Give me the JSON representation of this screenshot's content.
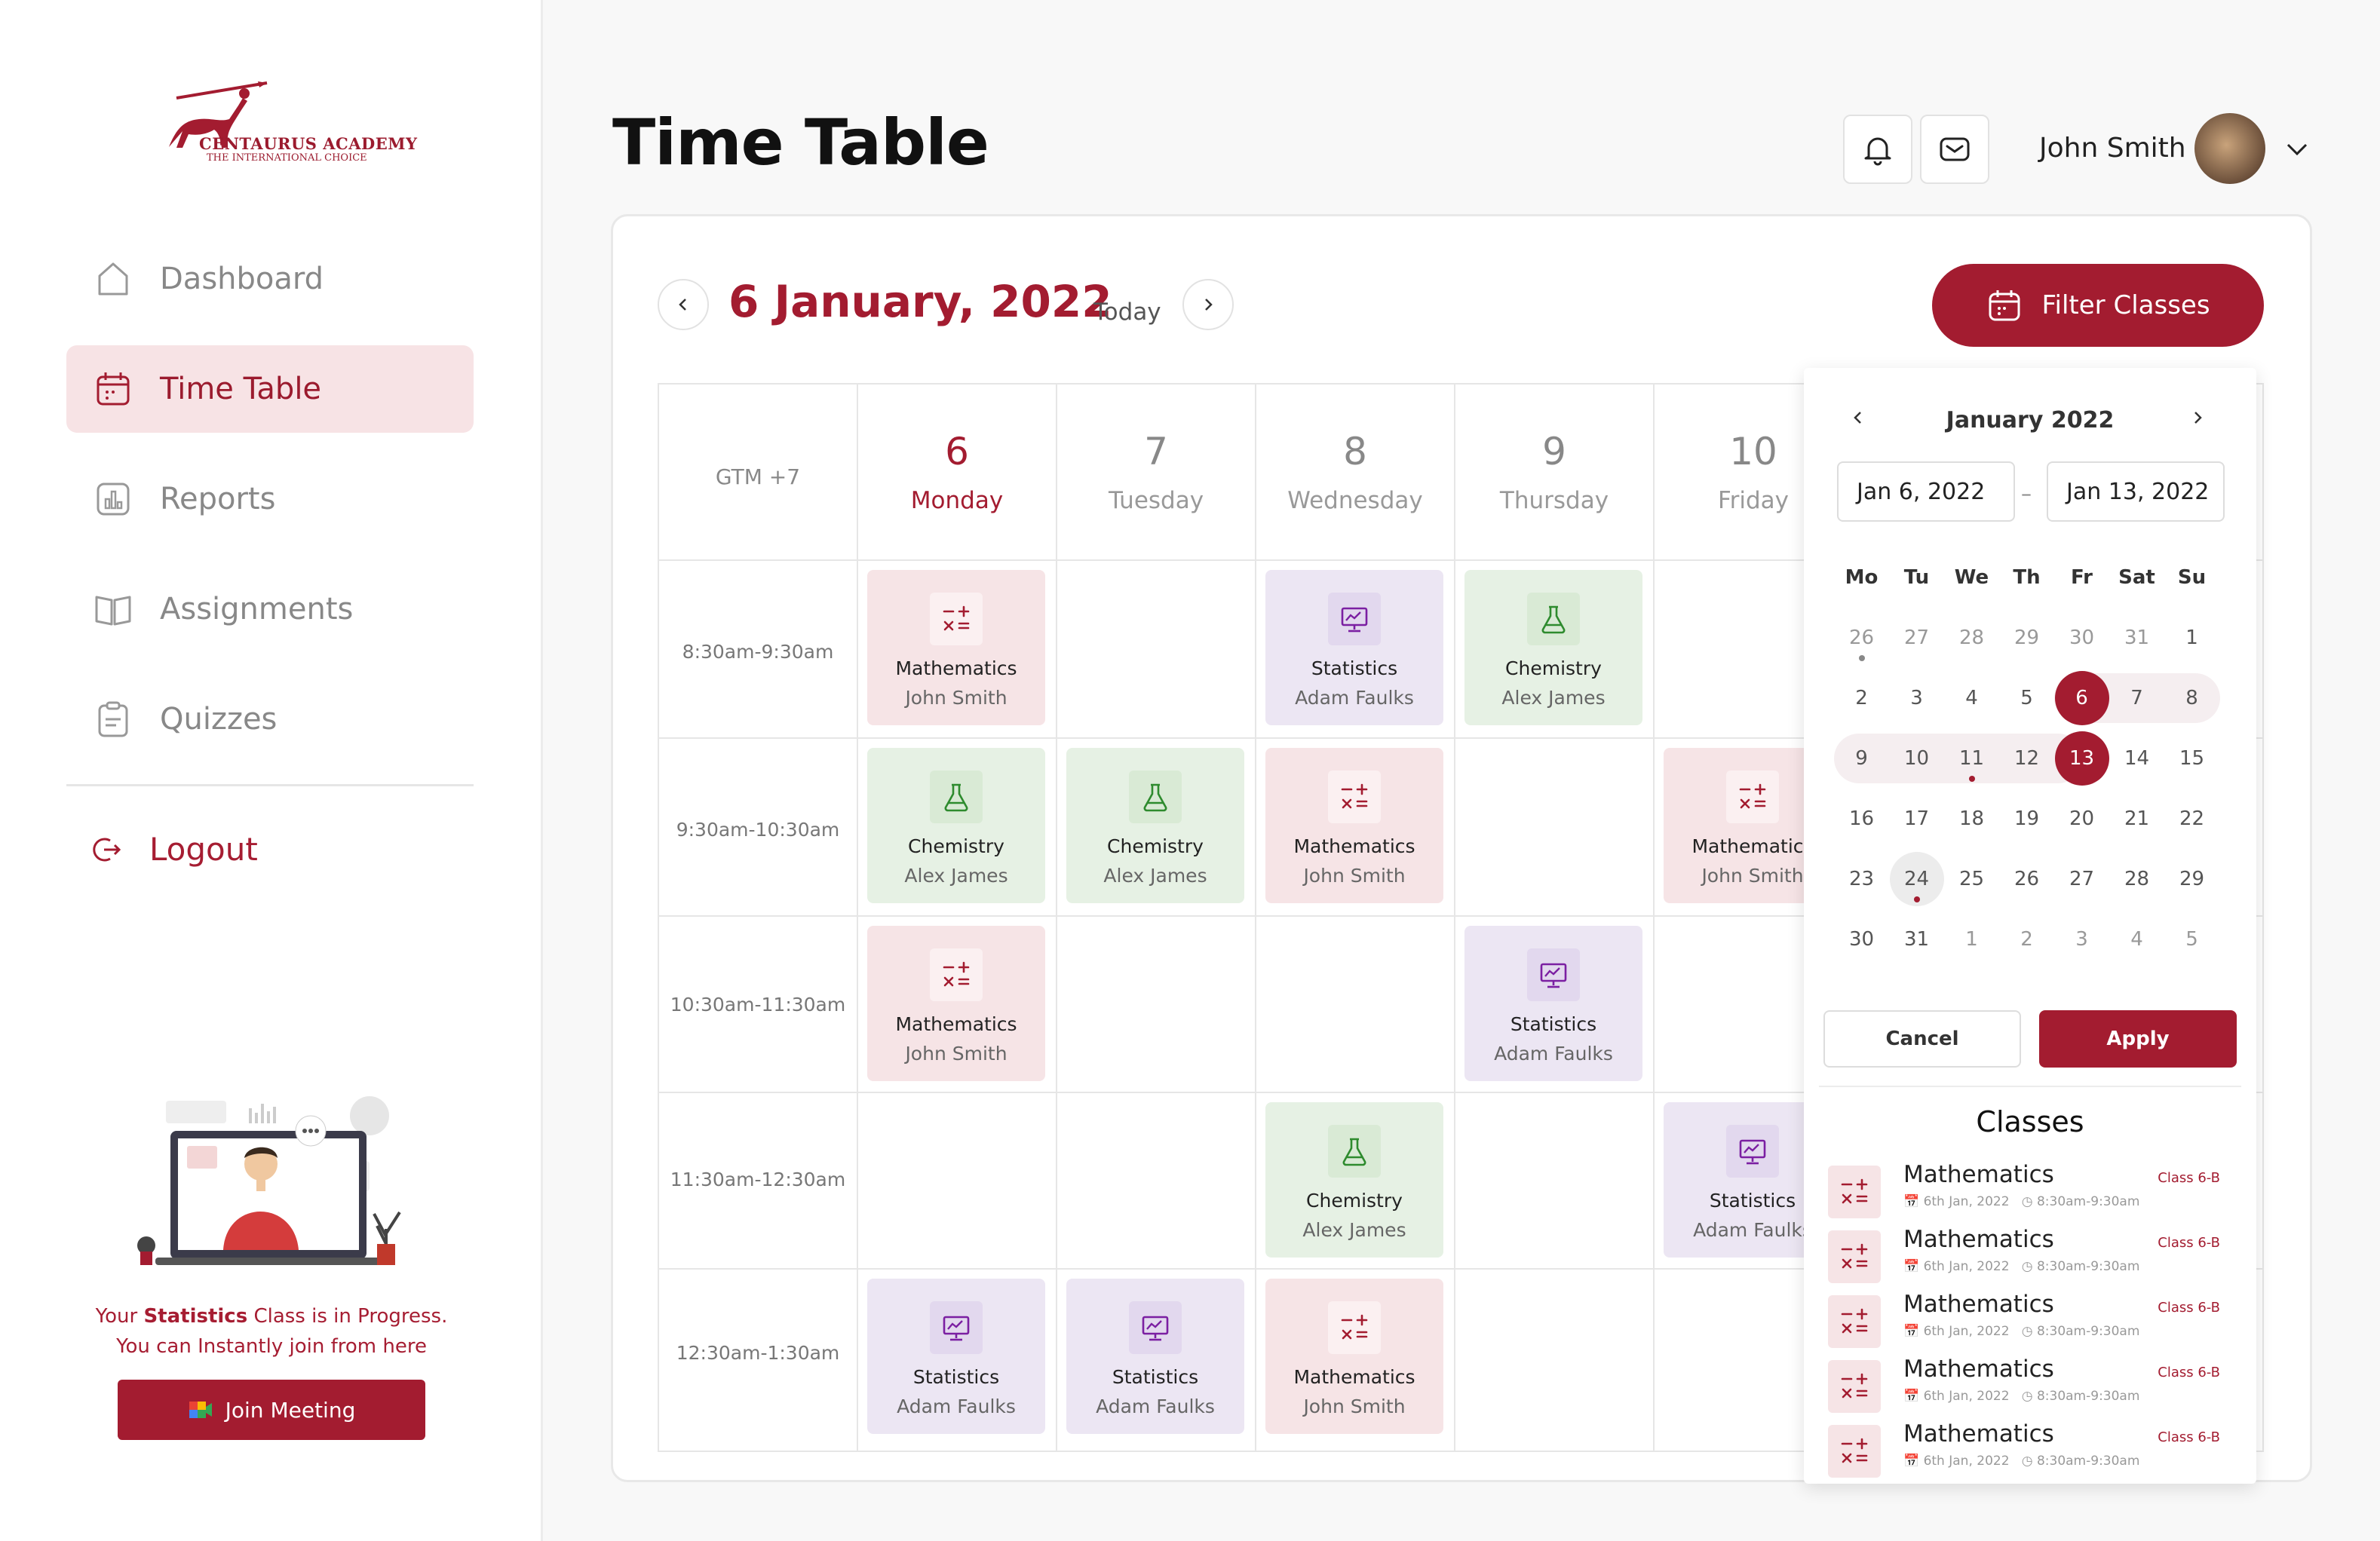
{
  "brand": {
    "name": "CENTAURUS ACADEMY",
    "tagline": "THE INTERNATIONAL CHOICE",
    "accent": "#a31c30"
  },
  "sidebar": {
    "items": [
      {
        "label": "Dashboard",
        "icon": "home-icon"
      },
      {
        "label": "Time Table",
        "icon": "calendar-icon",
        "active": true
      },
      {
        "label": "Reports",
        "icon": "chart-icon"
      },
      {
        "label": "Assignments",
        "icon": "book-icon"
      },
      {
        "label": "Quizzes",
        "icon": "clipboard-icon"
      }
    ],
    "logout": "Logout",
    "promo": {
      "prefix": "Your",
      "subject": "Statistics",
      "suffix": "Class is in Progress.",
      "line2": "You can Instantly join from here"
    },
    "join_button": "Join Meeting"
  },
  "header": {
    "title": "Time Table",
    "user_name": "John Smith"
  },
  "toolbar": {
    "current_date": "6 January, 2022",
    "today_label": "Today",
    "filter_button": "Filter Classes"
  },
  "timetable": {
    "timezone": "GTM +7",
    "days": [
      {
        "num": "6",
        "name": "Monday",
        "active": true
      },
      {
        "num": "7",
        "name": "Tuesday"
      },
      {
        "num": "8",
        "name": "Wednesday"
      },
      {
        "num": "9",
        "name": "Thursday"
      },
      {
        "num": "10",
        "name": "Friday"
      }
    ],
    "slots": [
      "8:30am-9:30am",
      "9:30am-10:30am",
      "10:30am-11:30am",
      "11:30am-12:30am",
      "12:30am-1:30am"
    ],
    "classes": [
      {
        "subject": "Mathematics",
        "teacher": "John Smith",
        "type": "math",
        "day": 0,
        "slot": 0
      },
      {
        "subject": "Statistics",
        "teacher": "Adam Faulks",
        "type": "stat",
        "day": 2,
        "slot": 0
      },
      {
        "subject": "Chemistry",
        "teacher": "Alex James",
        "type": "chem",
        "day": 3,
        "slot": 0
      },
      {
        "subject": "Chemistry",
        "teacher": "Alex James",
        "type": "chem",
        "day": 0,
        "slot": 1
      },
      {
        "subject": "Chemistry",
        "teacher": "Alex James",
        "type": "chem",
        "day": 1,
        "slot": 1
      },
      {
        "subject": "Mathematics",
        "teacher": "John Smith",
        "type": "math",
        "day": 2,
        "slot": 1
      },
      {
        "subject": "Mathematics",
        "teacher": "John Smith",
        "type": "math",
        "day": 4,
        "slot": 1
      },
      {
        "subject": "Mathematics",
        "teacher": "John Smith",
        "type": "math",
        "day": 0,
        "slot": 2
      },
      {
        "subject": "Statistics",
        "teacher": "Adam Faulks",
        "type": "stat",
        "day": 3,
        "slot": 2
      },
      {
        "subject": "Chemistry",
        "teacher": "Alex James",
        "type": "chem",
        "day": 2,
        "slot": 3
      },
      {
        "subject": "Statistics",
        "teacher": "Adam Faulks",
        "type": "stat",
        "day": 4,
        "slot": 3
      },
      {
        "subject": "Statistics",
        "teacher": "Adam Faulks",
        "type": "stat",
        "day": 0,
        "slot": 4
      },
      {
        "subject": "Statistics",
        "teacher": "Adam Faulks",
        "type": "stat",
        "day": 1,
        "slot": 4
      },
      {
        "subject": "Mathematics",
        "teacher": "John Smith",
        "type": "math",
        "day": 2,
        "slot": 4
      }
    ]
  },
  "filter_popup": {
    "month": "January 2022",
    "start_date": "Jan 6, 2022",
    "end_date": "Jan 13, 2022",
    "weekdays": [
      "Mo",
      "Tu",
      "We",
      "Th",
      "Fr",
      "Sat",
      "Su"
    ],
    "weeks": [
      [
        "26",
        "27",
        "28",
        "29",
        "30",
        "31",
        "1"
      ],
      [
        "2",
        "3",
        "4",
        "5",
        "6",
        "7",
        "8"
      ],
      [
        "9",
        "10",
        "11",
        "12",
        "13",
        "14",
        "15"
      ],
      [
        "16",
        "17",
        "18",
        "19",
        "20",
        "21",
        "22"
      ],
      [
        "23",
        "24",
        "25",
        "26",
        "27",
        "28",
        "29"
      ],
      [
        "30",
        "31",
        "1",
        "2",
        "3",
        "4",
        "5"
      ]
    ],
    "selected": [
      "6",
      "13"
    ],
    "today": "24",
    "cancel": "Cancel",
    "apply": "Apply",
    "classes_title": "Classes",
    "classes": [
      {
        "subject": "Mathematics",
        "class": "Class 6-B",
        "date": "6th Jan, 2022",
        "time": "8:30am-9:30am"
      },
      {
        "subject": "Mathematics",
        "class": "Class 6-B",
        "date": "6th Jan, 2022",
        "time": "8:30am-9:30am"
      },
      {
        "subject": "Mathematics",
        "class": "Class 6-B",
        "date": "6th Jan, 2022",
        "time": "8:30am-9:30am"
      },
      {
        "subject": "Mathematics",
        "class": "Class 6-B",
        "date": "6th Jan, 2022",
        "time": "8:30am-9:30am"
      },
      {
        "subject": "Mathematics",
        "class": "Class 6-B",
        "date": "6th Jan, 2022",
        "time": "8:30am-9:30am"
      }
    ]
  }
}
